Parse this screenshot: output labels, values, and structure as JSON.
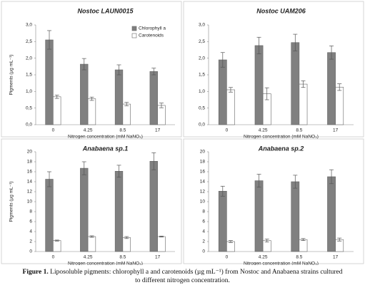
{
  "chart_data": [
    {
      "type": "bar",
      "title": "Nostoc LAUN0015",
      "ylabel": "Pigments (µg mL⁻¹)",
      "xlabel": "Nitrogen concentration (mM NaNO₃)",
      "categories": [
        "0",
        "4.25",
        "8.5",
        "17"
      ],
      "series": [
        {
          "name": "Chlorophyll a",
          "color": "#808080",
          "values": [
            2.55,
            1.82,
            1.65,
            1.6
          ],
          "errors": [
            0.28,
            0.17,
            0.15,
            0.1
          ]
        },
        {
          "name": "Carotenoids",
          "color": "#ffffff",
          "values": [
            0.84,
            0.78,
            0.62,
            0.58
          ],
          "errors": [
            0.05,
            0.05,
            0.05,
            0.07
          ]
        }
      ],
      "legend": "upper right",
      "ylim": [
        0,
        3
      ],
      "yticks": [
        {
          "value": 0,
          "label": "0,0"
        },
        {
          "value": 0.5,
          "label": "0,5"
        },
        {
          "value": 1,
          "label": "1,0"
        },
        {
          "value": 1.5,
          "label": "1,5"
        },
        {
          "value": 2,
          "label": "2,0"
        },
        {
          "value": 2.5,
          "label": "2,5"
        },
        {
          "value": 3,
          "label": "3,0"
        }
      ]
    },
    {
      "type": "bar",
      "title": "Nostoc UAM206",
      "xlabel": "Nitrogen concentration (mM NaNO₃)",
      "categories": [
        "0",
        "4.25",
        "8.5",
        "17"
      ],
      "series": [
        {
          "color": "#808080",
          "values": [
            1.95,
            2.38,
            2.47,
            2.17
          ],
          "errors": [
            0.22,
            0.25,
            0.25,
            0.2
          ]
        },
        {
          "color": "#ffffff",
          "values": [
            1.05,
            0.93,
            1.22,
            1.13
          ],
          "errors": [
            0.07,
            0.18,
            0.1,
            0.1
          ]
        }
      ],
      "ylim": [
        0,
        3
      ],
      "yticks": [
        {
          "value": 0,
          "label": "0,0"
        },
        {
          "value": 0.5,
          "label": "0,5"
        },
        {
          "value": 1,
          "label": "1,0"
        },
        {
          "value": 1.5,
          "label": "1,5"
        },
        {
          "value": 2,
          "label": "2,0"
        },
        {
          "value": 2.5,
          "label": "2,5"
        },
        {
          "value": 3,
          "label": "3,0"
        }
      ]
    },
    {
      "type": "bar",
      "title": "Anabaena sp.1",
      "ylabel": "Pigments (µg mL⁻¹)",
      "xlabel": "Nitrogen concentration (mM NaNO₃)",
      "categories": [
        "0",
        "4.25",
        "8.5",
        "17"
      ],
      "series": [
        {
          "color": "#808080",
          "values": [
            14.5,
            16.7,
            16.1,
            18.1
          ],
          "errors": [
            1.5,
            1.3,
            1.2,
            1.7
          ]
        },
        {
          "color": "#ffffff",
          "values": [
            2.2,
            3.0,
            2.8,
            3.0
          ],
          "errors": [
            0.1,
            0.15,
            0.2,
            0.1
          ]
        }
      ],
      "ylim": [
        0,
        20
      ],
      "yticks": [
        0,
        2,
        4,
        6,
        8,
        10,
        12,
        14,
        16,
        18,
        20
      ]
    },
    {
      "type": "bar",
      "title": "Anabaena sp.2",
      "xlabel": "Nitrogen concentration (mM NaNO₃)",
      "categories": [
        "0",
        "4.25",
        "8.5",
        "17"
      ],
      "series": [
        {
          "color": "#808080",
          "values": [
            12.1,
            14.2,
            14.0,
            15.0
          ],
          "errors": [
            1.0,
            1.3,
            1.3,
            1.4
          ]
        },
        {
          "color": "#ffffff",
          "values": [
            2.0,
            2.2,
            2.4,
            2.4
          ],
          "errors": [
            0.2,
            0.3,
            0.2,
            0.3
          ]
        }
      ],
      "ylim": [
        0,
        20
      ],
      "yticks": [
        0,
        2,
        4,
        6,
        8,
        10,
        12,
        14,
        16,
        18,
        20
      ]
    }
  ],
  "caption": {
    "label": "Figure 1.",
    "text": "Liposoluble pigments: chlorophyll a and carotenoids (µg mL⁻¹) from Nostoc and Anabaena strains cultured to different nitrogen concentration."
  }
}
